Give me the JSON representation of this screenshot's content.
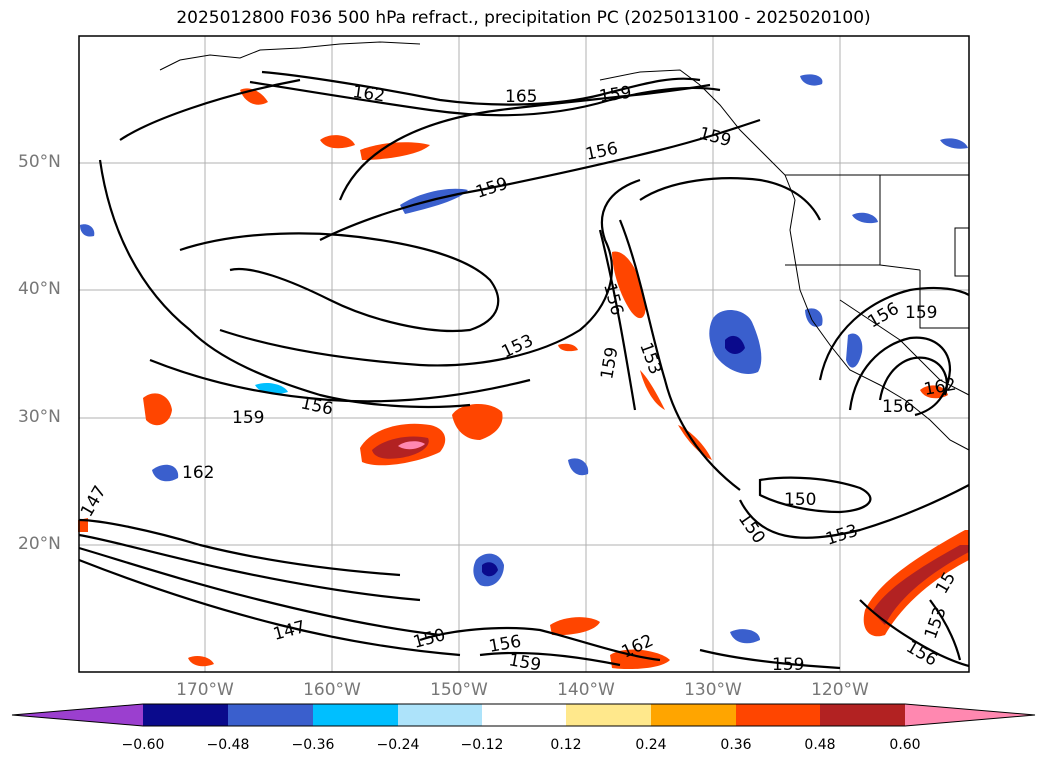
{
  "title": "2025012800 F036 500 hPa refract., precipitation PC (2025013100 - 2025020100)",
  "latitude_labels": [
    "50°N",
    "40°N",
    "30°N",
    "20°N"
  ],
  "longitude_labels": [
    "170°W",
    "160°W",
    "150°W",
    "140°W",
    "130°W",
    "120°W"
  ],
  "contour_labels": [
    "162",
    "165",
    "159",
    "159",
    "156",
    "159",
    "156",
    "153",
    "156",
    "159",
    "153",
    "159",
    "156",
    "162",
    "147",
    "150",
    "150",
    "153",
    "147",
    "150",
    "156",
    "159",
    "162",
    "159",
    "156",
    "159",
    "162",
    "153",
    "156",
    "156",
    "15"
  ],
  "colorbar": {
    "ticks": [
      "−0.60",
      "−0.48",
      "−0.36",
      "−0.24",
      "−0.12",
      "0.12",
      "0.24",
      "0.36",
      "0.48",
      "0.60"
    ],
    "colors": [
      "#9b3fcf",
      "#0a0a8c",
      "#3a5fcd",
      "#00bfff",
      "#ade3fa",
      "#ffffff",
      "#ffe88c",
      "#ffa500",
      "#ff4500",
      "#b22222",
      "#ff88b0"
    ]
  }
}
